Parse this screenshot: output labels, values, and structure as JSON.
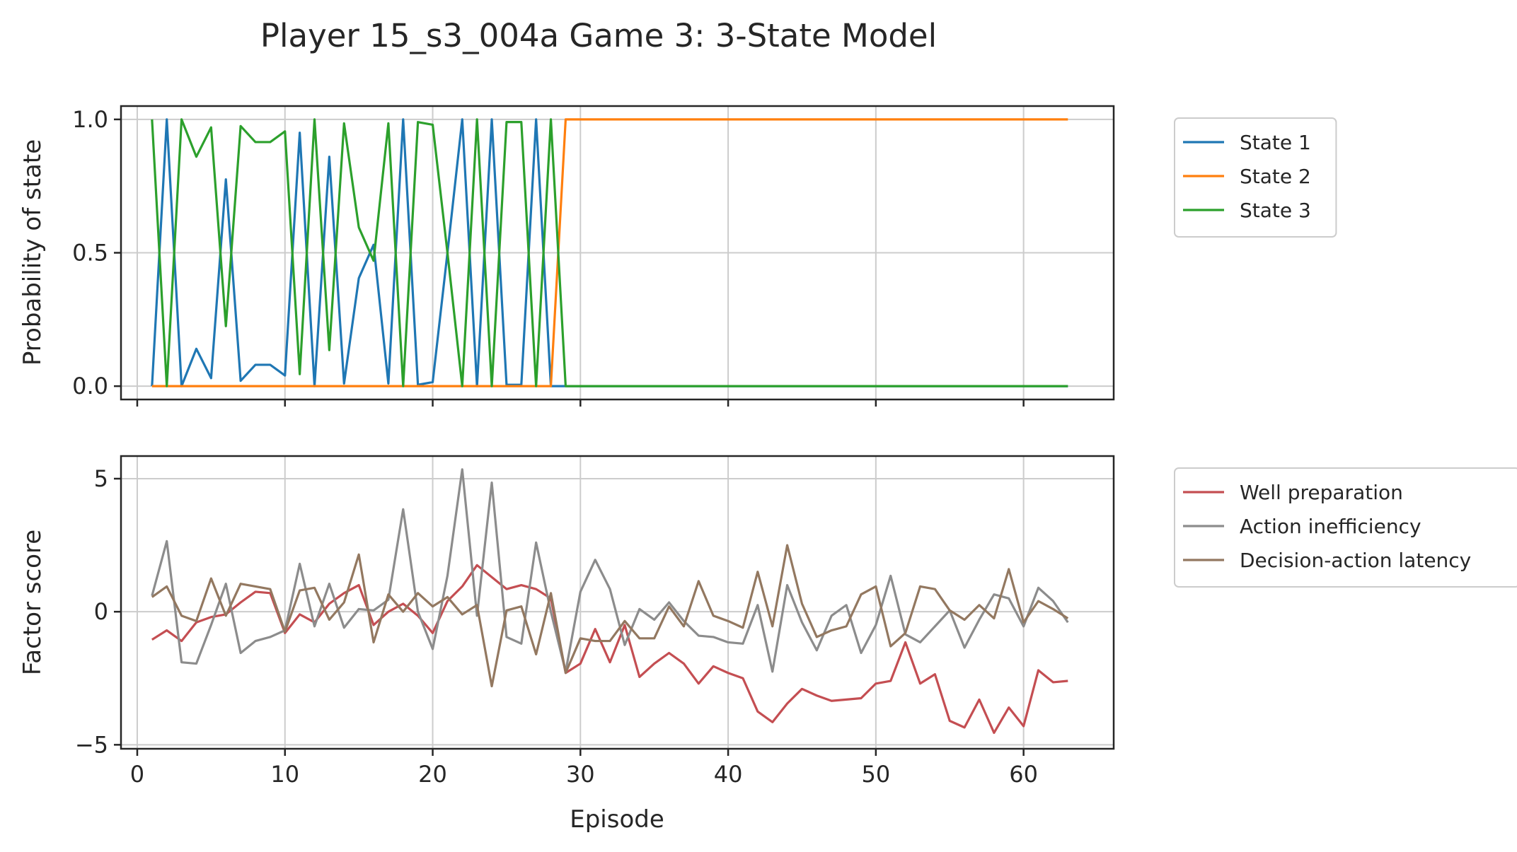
{
  "chart_data": [
    {
      "type": "line",
      "title": "Player 15_s3_004a Game 3: 3-State Model",
      "xlabel": "",
      "ylabel": "Probability of state",
      "xlim": [
        -1.1,
        66.1
      ],
      "ylim": [
        -0.05,
        1.05
      ],
      "xticks": [
        0,
        10,
        20,
        30,
        40,
        50,
        60
      ],
      "yticks": [
        0.0,
        0.5,
        1.0
      ],
      "ytick_labels": [
        "0.0",
        "0.5",
        "1.0"
      ],
      "grid": true,
      "legend": "outside-right-top",
      "x_start": 1,
      "series": [
        {
          "name": "State 1",
          "color": "#1f77b4",
          "values": [
            0.0,
            1.0,
            0.0,
            0.14,
            0.03,
            0.775,
            0.02,
            0.08,
            0.08,
            0.04,
            0.95,
            0.0,
            0.86,
            0.01,
            0.405,
            0.53,
            0.01,
            1.0,
            0.005,
            0.015,
            0.5,
            1.0,
            0.0,
            1.0,
            0.005,
            0.005,
            1.0,
            0,
            0,
            0,
            0,
            0,
            0,
            0,
            0,
            0,
            0,
            0,
            0,
            0,
            0,
            0,
            0,
            0,
            0,
            0,
            0,
            0,
            0,
            0,
            0,
            0,
            0,
            0,
            0,
            0,
            0,
            0,
            0,
            0,
            0,
            0,
            0
          ]
        },
        {
          "name": "State 2",
          "color": "#ff7f0e",
          "values": [
            0,
            0,
            0,
            0,
            0,
            0,
            0,
            0,
            0,
            0,
            0,
            0,
            0,
            0,
            0,
            0,
            0,
            0,
            0,
            0,
            0,
            0,
            0,
            0,
            0,
            0,
            0,
            0,
            1,
            1,
            1,
            1,
            1,
            1,
            1,
            1,
            1,
            1,
            1,
            1,
            1,
            1,
            1,
            1,
            1,
            1,
            1,
            1,
            1,
            1,
            1,
            1,
            1,
            1,
            1,
            1,
            1,
            1,
            1,
            1,
            1,
            1,
            1
          ]
        },
        {
          "name": "State 3",
          "color": "#2ca02c",
          "values": [
            1.0,
            0.0,
            1.0,
            0.86,
            0.97,
            0.225,
            0.975,
            0.915,
            0.915,
            0.955,
            0.045,
            1.0,
            0.135,
            0.985,
            0.595,
            0.47,
            0.985,
            0.0,
            0.99,
            0.98,
            0.5,
            0.0,
            1.0,
            0.0,
            0.99,
            0.99,
            0.0,
            1.0,
            0,
            0,
            0,
            0,
            0,
            0,
            0,
            0,
            0,
            0,
            0,
            0,
            0,
            0,
            0,
            0,
            0,
            0,
            0,
            0,
            0,
            0,
            0,
            0,
            0,
            0,
            0,
            0,
            0,
            0,
            0,
            0,
            0,
            0,
            0
          ]
        }
      ]
    },
    {
      "type": "line",
      "title": "",
      "xlabel": "Episode",
      "ylabel": "Factor score",
      "xlim": [
        -1.1,
        66.1
      ],
      "ylim": [
        -5.15,
        5.85
      ],
      "xticks": [
        0,
        10,
        20,
        30,
        40,
        50,
        60
      ],
      "yticks": [
        -5,
        0,
        5
      ],
      "ytick_labels": [
        "−5",
        "0",
        "5"
      ],
      "grid": true,
      "legend": "outside-right-top",
      "x_start": 1,
      "series": [
        {
          "name": "Well preparation",
          "color": "#c44e52",
          "values": [
            -1.05,
            -0.7,
            -1.1,
            -0.4,
            -0.2,
            -0.1,
            0.35,
            0.75,
            0.7,
            -0.8,
            -0.1,
            -0.4,
            0.3,
            0.7,
            1.0,
            -0.5,
            0.0,
            0.3,
            -0.15,
            -0.8,
            0.4,
            0.95,
            1.75,
            1.3,
            0.85,
            1.0,
            0.85,
            0.5,
            -2.3,
            -1.95,
            -0.65,
            -1.9,
            -0.5,
            -2.45,
            -1.95,
            -1.55,
            -1.95,
            -2.7,
            -2.05,
            -2.3,
            -2.5,
            -3.75,
            -4.15,
            -3.45,
            -2.9,
            -3.15,
            -3.35,
            -3.3,
            -3.25,
            -2.7,
            -2.6,
            -1.15,
            -2.7,
            -2.35,
            -4.1,
            -4.35,
            -3.3,
            -4.55,
            -3.6,
            -4.3,
            -2.2,
            -2.65,
            -2.6
          ]
        },
        {
          "name": "Action inefficiency",
          "color": "#8c8c8c",
          "values": [
            0.6,
            2.65,
            -1.9,
            -1.95,
            -0.5,
            1.05,
            -1.55,
            -1.1,
            -0.95,
            -0.7,
            1.8,
            -0.55,
            1.05,
            -0.6,
            0.1,
            0.05,
            0.45,
            3.85,
            0.0,
            -1.4,
            1.35,
            5.35,
            -0.15,
            4.85,
            -0.95,
            -1.2,
            2.6,
            0.0,
            -2.25,
            0.75,
            1.95,
            0.85,
            -1.25,
            0.1,
            -0.3,
            0.35,
            -0.35,
            -0.9,
            -0.95,
            -1.15,
            -1.2,
            0.25,
            -2.25,
            1.0,
            -0.4,
            -1.45,
            -0.15,
            0.25,
            -1.55,
            -0.5,
            1.35,
            -0.85,
            -1.15,
            -0.55,
            0.05,
            -1.35,
            -0.3,
            0.65,
            0.5,
            -0.55,
            0.9,
            0.4,
            -0.4
          ]
        },
        {
          "name": "Decision-action latency",
          "color": "#937860",
          "values": [
            0.55,
            0.95,
            -0.15,
            -0.35,
            1.25,
            -0.15,
            1.05,
            0.95,
            0.85,
            -0.75,
            0.8,
            0.9,
            -0.3,
            0.35,
            2.15,
            -1.15,
            0.65,
            0.0,
            0.7,
            0.2,
            0.55,
            -0.1,
            0.25,
            -2.8,
            0.05,
            0.2,
            -1.6,
            0.7,
            -2.3,
            -1.0,
            -1.1,
            -1.1,
            -0.35,
            -1.0,
            -1.0,
            0.2,
            -0.55,
            1.15,
            -0.15,
            -0.35,
            -0.6,
            1.5,
            -0.55,
            2.5,
            0.3,
            -0.95,
            -0.7,
            -0.55,
            0.65,
            0.95,
            -1.3,
            -0.8,
            0.95,
            0.85,
            0.05,
            -0.3,
            0.25,
            -0.25,
            1.6,
            -0.4,
            0.4,
            0.1,
            -0.25
          ]
        }
      ]
    }
  ]
}
